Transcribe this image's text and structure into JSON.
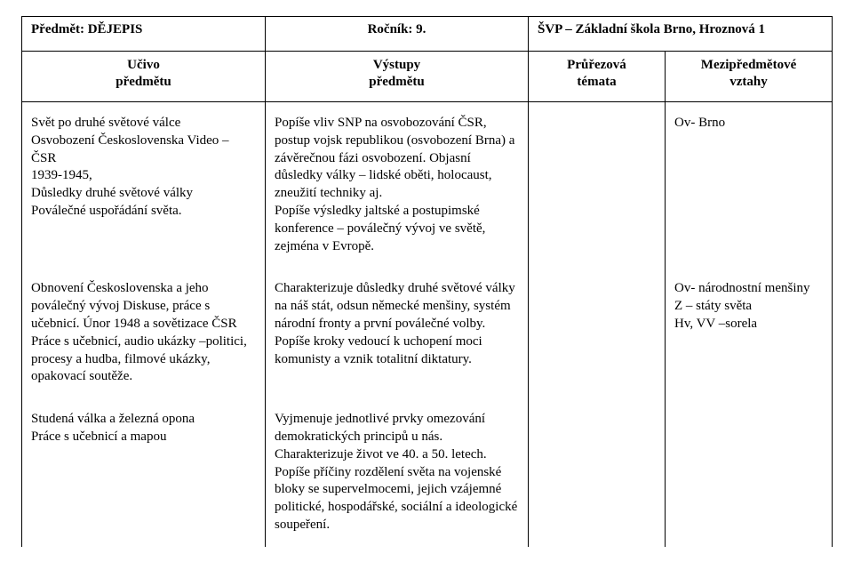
{
  "header": {
    "subject_label": "Předmět: DĚJEPIS",
    "grade_label": "Ročník: 9.",
    "svp_label": "ŠVP – Základní škola Brno, Hroznová 1",
    "col1": "Učivo\npředmětu",
    "col2": "Výstupy\npředmětu",
    "col3": "Průřezová\ntémata",
    "col4": "Mezipředmětové\nvztahy"
  },
  "rows": [
    {
      "ucivo": "Svět po druhé světové válce\nOsvobození Československa Video – ČSR\n1939-1945,\nDůsledky druhé světové války\nPoválečné uspořádání světa.",
      "vystupy": "Popíše vliv SNP na osvobozování ČSR, postup vojsk republikou (osvobození Brna) a závěrečnou fázi osvobození. Objasní důsledky války – lidské oběti, holocaust, zneužití techniky aj.\nPopíše výsledky jaltské a postupimské konference – poválečný vývoj ve světě, zejména v Evropě.",
      "temata": "",
      "vztahy": "Ov- Brno"
    },
    {
      "ucivo": "Obnovení Československa a jeho poválečný vývoj Diskuse, práce s učebnicí. Únor 1948 a sovětizace ČSR Práce s učebnicí, audio ukázky –politici, procesy a hudba, filmové ukázky, opakovací soutěže.",
      "vystupy": "Charakterizuje důsledky druhé světové války na náš stát, odsun německé menšiny, systém národní fronty a první poválečné volby.\nPopíše kroky vedoucí k uchopení moci komunisty a vznik totalitní diktatury.",
      "temata": "",
      "vztahy": "Ov-  národnostní menšiny\nZ – státy světa\nHv, VV –sorela"
    },
    {
      "ucivo": "Studená válka a železná opona\nPráce s učebnicí a mapou",
      "vystupy": "Vyjmenuje jednotlivé prvky omezování demokratických principů u nás.\nCharakterizuje život ve 40. a 50. letech.\nPopíše příčiny rozdělení světa na  vojenské bloky se supervelmocemi, jejich vzájemné politické, hospodářské, sociální a ideologické soupeření.",
      "temata": "",
      "vztahy": ""
    }
  ]
}
